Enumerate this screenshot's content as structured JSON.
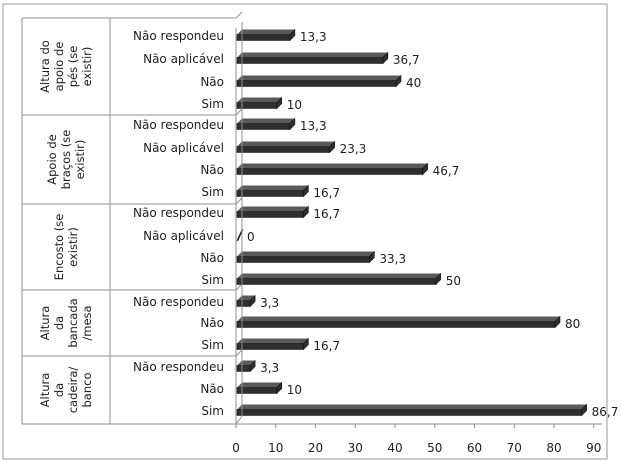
{
  "chart_data": {
    "type": "bar",
    "orientation": "horizontal",
    "title": "",
    "xlabel": "",
    "ylabel": "",
    "xlim": [
      0,
      90
    ],
    "xticks": [
      0,
      10,
      20,
      30,
      40,
      50,
      60,
      70,
      80,
      90
    ],
    "grid": false,
    "legend": "none",
    "bar_color": "#2f2f2f",
    "groups": [
      {
        "name": "Altura do apoio de pés (se existir)",
        "label_lines": [
          "Altura do",
          "apoio de",
          "pés (se",
          "existir)"
        ],
        "categories": [
          "Não respondeu",
          "Não aplicável",
          "Não",
          "Sim"
        ],
        "values": [
          13.3,
          36.7,
          40,
          10
        ],
        "value_labels": [
          "13,3",
          "36,7",
          "40",
          "10"
        ]
      },
      {
        "name": "Apoio de braços (se existir)",
        "label_lines": [
          "Apoio de",
          "braços (se",
          "existir)"
        ],
        "categories": [
          "Não respondeu",
          "Não aplicável",
          "Não",
          "Sim"
        ],
        "values": [
          13.3,
          23.3,
          46.7,
          16.7
        ],
        "value_labels": [
          "13,3",
          "23,3",
          "46,7",
          "16,7"
        ]
      },
      {
        "name": "Encosto (se existir)",
        "label_lines": [
          "Encosto (se",
          "existir)"
        ],
        "categories": [
          "Não respondeu",
          "Não aplicável",
          "Não",
          "Sim"
        ],
        "values": [
          16.7,
          0,
          33.3,
          50
        ],
        "value_labels": [
          "16,7",
          "0",
          "33,3",
          "50"
        ]
      },
      {
        "name": "Altura da bancada /mesa",
        "label_lines": [
          "Altura",
          "da",
          "bancada",
          "/mesa"
        ],
        "categories": [
          "Não respondeu",
          "Não",
          "Sim"
        ],
        "values": [
          3.3,
          80,
          16.7
        ],
        "value_labels": [
          "3,3",
          "80",
          "16,7"
        ]
      },
      {
        "name": "Altura da cadeira/ banco",
        "label_lines": [
          "Altura",
          "da",
          "cadeira/",
          "banco"
        ],
        "categories": [
          "Não respondeu",
          "Não",
          "Sim"
        ],
        "values": [
          3.3,
          10,
          86.7
        ],
        "value_labels": [
          "3,3",
          "10",
          "86,7"
        ]
      }
    ]
  }
}
